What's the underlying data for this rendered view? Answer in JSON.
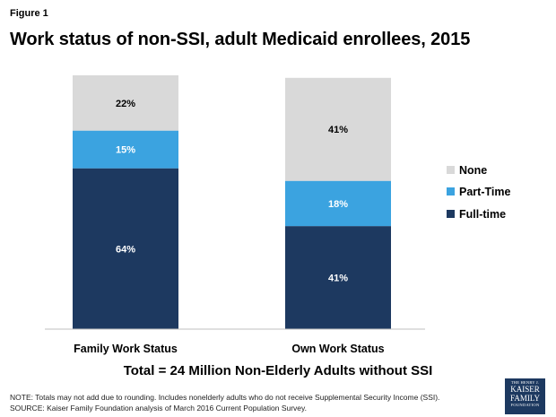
{
  "figure_label": "Figure 1",
  "title": "Work status of non-SSI, adult Medicaid enrollees, 2015",
  "subtitle": "Total = 24 Million Non-Elderly Adults without SSI",
  "note": "NOTE:  Totals may not add due to rounding. Includes nonelderly adults who do not receive Supplemental Security Income (SSI).",
  "source": "SOURCE: Kaiser Family Foundation  analysis of March 2016 Current Population Survey.",
  "logo": {
    "line1": "THE HENRY J.",
    "line2": "KAISER",
    "line3": "FAMILY",
    "line4": "FOUNDATION"
  },
  "colors": {
    "None": "#d9d9d9",
    "Part-Time": "#3ba3e0",
    "Full-time": "#1d3960"
  },
  "chart_data": {
    "type": "bar",
    "stacked": true,
    "categories": [
      "Family Work Status",
      "Own Work Status"
    ],
    "series": [
      {
        "name": "Full-time",
        "values": [
          64,
          41
        ],
        "labels": [
          "64%",
          "41%"
        ]
      },
      {
        "name": "Part-Time",
        "values": [
          15,
          18
        ],
        "labels": [
          "15%",
          "18%"
        ]
      },
      {
        "name": "None",
        "values": [
          22,
          41
        ],
        "labels": [
          "22%",
          "41%"
        ]
      }
    ],
    "legend": [
      "None",
      "Part-Time",
      "Full-time"
    ],
    "legend_position": "right",
    "ylim": [
      0,
      101
    ],
    "title": "Work status of non-SSI, adult Medicaid enrollees, 2015",
    "xlabel": "",
    "ylabel": ""
  }
}
